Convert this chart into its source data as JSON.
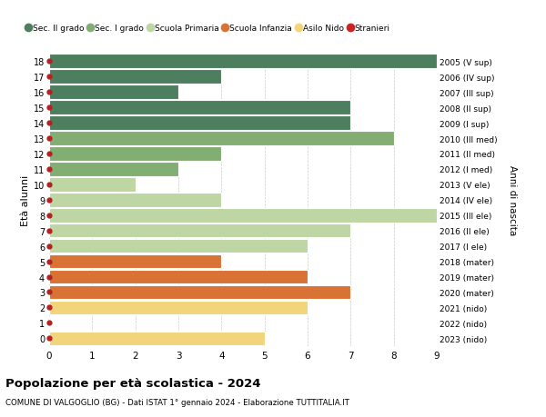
{
  "ages": [
    18,
    17,
    16,
    15,
    14,
    13,
    12,
    11,
    10,
    9,
    8,
    7,
    6,
    5,
    4,
    3,
    2,
    1,
    0
  ],
  "years": [
    "2005 (V sup)",
    "2006 (IV sup)",
    "2007 (III sup)",
    "2008 (II sup)",
    "2009 (I sup)",
    "2010 (III med)",
    "2011 (II med)",
    "2012 (I med)",
    "2013 (V ele)",
    "2014 (IV ele)",
    "2015 (III ele)",
    "2016 (II ele)",
    "2017 (I ele)",
    "2018 (mater)",
    "2019 (mater)",
    "2020 (mater)",
    "2021 (nido)",
    "2022 (nido)",
    "2023 (nido)"
  ],
  "values": [
    9,
    4,
    3,
    7,
    7,
    8,
    4,
    3,
    2,
    4,
    9,
    7,
    6,
    4,
    6,
    7,
    6,
    0,
    5
  ],
  "colors": [
    "#4d7f5e",
    "#4d7f5e",
    "#4d7f5e",
    "#4d7f5e",
    "#4d7f5e",
    "#82ae73",
    "#82ae73",
    "#82ae73",
    "#bdd6a3",
    "#bdd6a3",
    "#bdd6a3",
    "#bdd6a3",
    "#bdd6a3",
    "#d97235",
    "#d97235",
    "#d97235",
    "#f2d47a",
    "#f2d47a",
    "#f2d47a"
  ],
  "legend_labels": [
    "Sec. II grado",
    "Sec. I grado",
    "Scuola Primaria",
    "Scuola Infanzia",
    "Asilo Nido",
    "Stranieri"
  ],
  "legend_colors": [
    "#4d7f5e",
    "#82ae73",
    "#bdd6a3",
    "#d97235",
    "#f2d47a",
    "#cc2222"
  ],
  "title": "Popolazione per età scolastica - 2024",
  "subtitle": "COMUNE DI VALGOGLIO (BG) - Dati ISTAT 1° gennaio 2024 - Elaborazione TUTTITALIA.IT",
  "ylabel": "Età alunni",
  "right_label": "Anni di nascita",
  "xlim": [
    0,
    9
  ],
  "bar_height": 0.92,
  "background_color": "#ffffff",
  "grid_color": "#cccccc",
  "dot_color": "#b22222",
  "dot_size": 3.5
}
